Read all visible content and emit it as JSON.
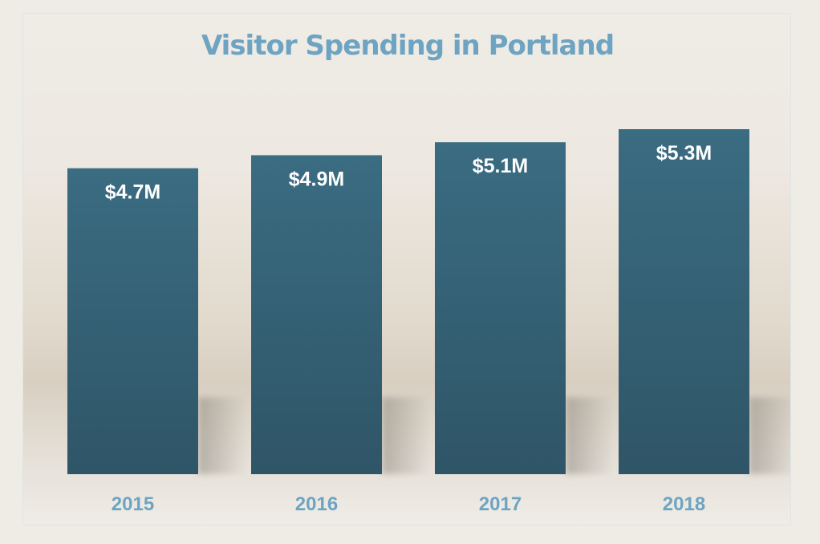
{
  "chart_data": {
    "type": "bar",
    "title": "Visitor Spending in Portland",
    "categories": [
      "2015",
      "2016",
      "2017",
      "2018"
    ],
    "values": [
      4.7,
      4.9,
      5.1,
      5.3
    ],
    "data_labels": [
      "$4.7M",
      "$4.9M",
      "$5.1M",
      "$5.3M"
    ],
    "unit": "$M",
    "xlabel": "",
    "ylabel": "",
    "ylim": [
      0,
      5.3
    ],
    "grid": false,
    "legend": "none",
    "colors": {
      "bar_top": "#3a6c82",
      "bar_bottom": "#2f5567",
      "title": "#6ea4c2",
      "tick_label": "#6ea4c2",
      "data_label": "#ffffff"
    }
  }
}
